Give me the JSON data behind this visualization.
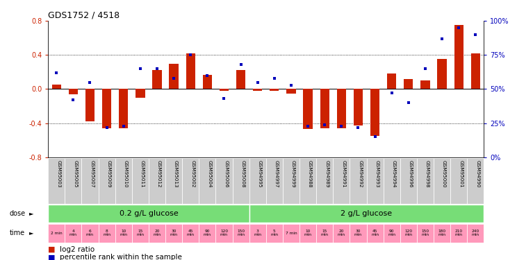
{
  "title": "GDS1752 / 4518",
  "samples": [
    "GSM95003",
    "GSM95005",
    "GSM95007",
    "GSM95009",
    "GSM95010",
    "GSM95011",
    "GSM95012",
    "GSM95013",
    "GSM95002",
    "GSM95004",
    "GSM95006",
    "GSM95008",
    "GSM94995",
    "GSM94997",
    "GSM94999",
    "GSM94988",
    "GSM94989",
    "GSM94991",
    "GSM94992",
    "GSM94993",
    "GSM94994",
    "GSM94996",
    "GSM94998",
    "GSM95000",
    "GSM95001",
    "GSM94990"
  ],
  "log2_ratio": [
    0.05,
    -0.06,
    -0.38,
    -0.46,
    -0.46,
    -0.1,
    0.22,
    0.3,
    0.42,
    0.17,
    -0.02,
    0.22,
    -0.02,
    -0.02,
    -0.05,
    -0.47,
    -0.46,
    -0.46,
    -0.43,
    -0.55,
    0.18,
    0.12,
    0.1,
    0.35,
    0.75,
    0.42
  ],
  "percentile": [
    62,
    42,
    55,
    22,
    23,
    65,
    65,
    58,
    75,
    60,
    43,
    68,
    55,
    58,
    53,
    23,
    24,
    23,
    22,
    15,
    47,
    40,
    65,
    87,
    95,
    90
  ],
  "bar_color": "#CC2200",
  "dot_color": "#0000BB",
  "dose1_label": "0.2 g/L glucose",
  "dose2_label": "2 g/L glucose",
  "dose1_count": 12,
  "dose2_count": 14,
  "dose_color": "#77DD77",
  "time_color": "#FF99BB",
  "time_bg_color": "#EE88AA",
  "time_labels": [
    "2 min",
    "4\nmin",
    "6\nmin",
    "8\nmin",
    "10\nmin",
    "15\nmin",
    "20\nmin",
    "30\nmin",
    "45\nmin",
    "90\nmin",
    "120\nmin",
    "150\nmin",
    "3\nmin",
    "5\nmin",
    "7 min",
    "10\nmin",
    "15\nmin",
    "20\nmin",
    "30\nmin",
    "45\nmin",
    "90\nmin",
    "120\nmin",
    "150\nmin",
    "180\nmin",
    "210\nmin",
    "240\nmin"
  ],
  "sample_bg": "#CCCCCC",
  "ylim_left": [
    -0.8,
    0.8
  ],
  "ylim_right": [
    0,
    100
  ],
  "yticks_left": [
    -0.8,
    -0.4,
    0.0,
    0.4,
    0.8
  ],
  "yticks_right": [
    0,
    25,
    50,
    75,
    100
  ],
  "ytick_labels_right": [
    "0%",
    "25%",
    "50%",
    "75%",
    "100%"
  ],
  "legend1": "log2 ratio",
  "legend2": "percentile rank within the sample"
}
